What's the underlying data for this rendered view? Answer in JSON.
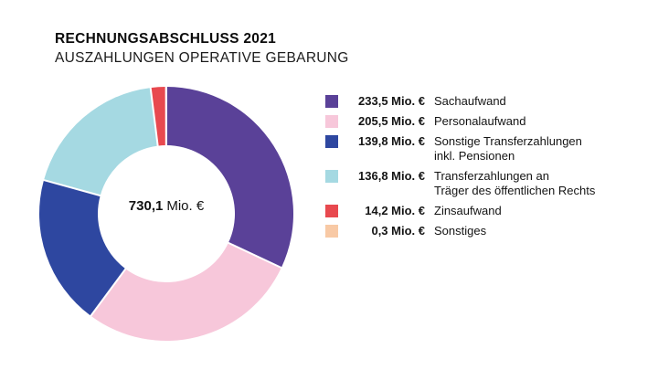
{
  "header": {
    "title": "RECHNUNGSABSCHLUSS 2021",
    "subtitle": "AUSZAHLUNGEN OPERATIVE GEBARUNG"
  },
  "chart_data": {
    "type": "pie",
    "variant": "donut",
    "title": "RECHNUNGSABSCHLUSS 2021 — AUSZAHLUNGEN OPERATIVE GEBARUNG",
    "unit": "Mio. €",
    "total": 730.1,
    "center_label": {
      "value": "730,1",
      "unit": "Mio. €"
    },
    "start_angle_deg": 0,
    "direction": "clockwise",
    "inner_radius_ratio": 0.54,
    "legend_position": "right",
    "grid": false,
    "series": [
      {
        "id": "sachaufwand",
        "label": "Sachaufwand",
        "label_lines": [
          "Sachaufwand"
        ],
        "value": 233.5,
        "value_display": "233,5",
        "unit": "Mio. €",
        "color": "#5a4198"
      },
      {
        "id": "personalaufwand",
        "label": "Personalaufwand",
        "label_lines": [
          "Personalaufwand"
        ],
        "value": 205.5,
        "value_display": "205,5",
        "unit": "Mio. €",
        "color": "#f7c7da"
      },
      {
        "id": "sonstige-transferzahlungen",
        "label": "Sonstige Transferzahlungen inkl. Pensionen",
        "label_lines": [
          "Sonstige Transferzahlungen",
          "inkl. Pensionen"
        ],
        "value": 139.8,
        "value_display": "139,8",
        "unit": "Mio. €",
        "color": "#2e47a0"
      },
      {
        "id": "transferzahlungen-traeger",
        "label": "Transferzahlungen an Träger des öffentlichen Rechts",
        "label_lines": [
          "Transferzahlungen an",
          "Träger des öffentlichen Rechts"
        ],
        "value": 136.8,
        "value_display": "136,8",
        "unit": "Mio. €",
        "color": "#a5d9e2"
      },
      {
        "id": "zinsaufwand",
        "label": "Zinsaufwand",
        "label_lines": [
          "Zinsaufwand"
        ],
        "value": 14.2,
        "value_display": "14,2",
        "unit": "Mio. €",
        "color": "#e8494f"
      },
      {
        "id": "sonstiges",
        "label": "Sonstiges",
        "label_lines": [
          "Sonstiges"
        ],
        "value": 0.3,
        "value_display": "0,3",
        "unit": "Mio. €",
        "color": "#f8c9a5"
      }
    ]
  }
}
